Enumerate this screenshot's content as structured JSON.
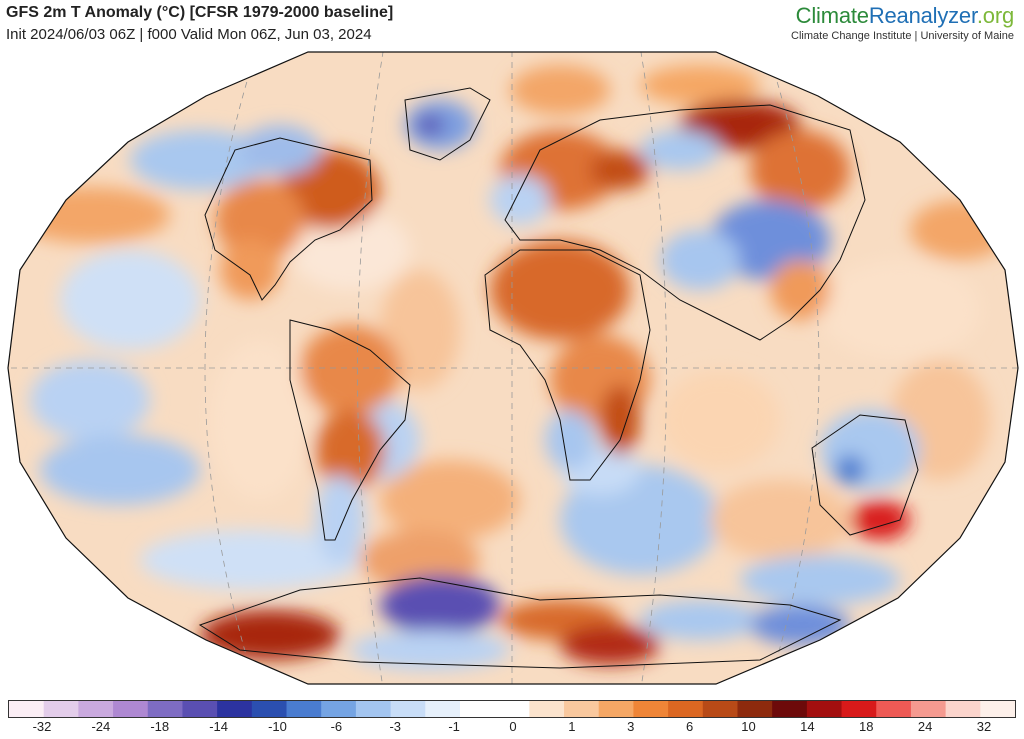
{
  "header": {
    "title": "GFS 2m T Anomaly (°C) [CFSR 1979-2000 baseline]",
    "subtitle": "Init 2024/06/03 06Z | f000 Valid Mon 06Z, Jun 03, 2024"
  },
  "brand": {
    "part1": "Climate",
    "part2": "Reanalyzer",
    "part3": ".org",
    "tagline": "Climate Change Institute | University of Maine",
    "colors": {
      "part1": "#2c8a3a",
      "part2": "#1f6fb5",
      "part3": "#7db83a"
    }
  },
  "colorbar": {
    "tick_labels": [
      "-32",
      "-24",
      "-18",
      "-14",
      "-10",
      "-6",
      "-3",
      "-1",
      "0",
      "1",
      "3",
      "6",
      "10",
      "14",
      "18",
      "24",
      "32"
    ],
    "colors": [
      "#fbeef5",
      "#e3cdea",
      "#c9a9de",
      "#ae88d2",
      "#7e6cc3",
      "#5a4fb2",
      "#2c33a0",
      "#2b4fb0",
      "#4a7cd0",
      "#75a4e3",
      "#a3c5f0",
      "#c8ddf7",
      "#e6f0fb",
      "#ffffff",
      "#ffffff",
      "#fbe3cd",
      "#f9c89e",
      "#f5a765",
      "#ef8537",
      "#db6722",
      "#b84a17",
      "#8d2a0d",
      "#6d0a0a",
      "#a30f0f",
      "#d81a1a",
      "#ee5a55",
      "#f59a90",
      "#fbd4cc",
      "#fdf0ea"
    ]
  }
}
